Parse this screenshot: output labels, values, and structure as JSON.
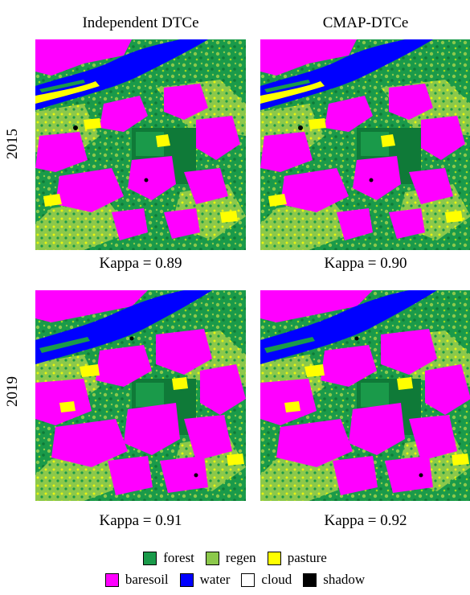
{
  "columns": [
    "Independent DTCe",
    "CMAP-DTCe"
  ],
  "rows": [
    "2015",
    "2019"
  ],
  "panels": [
    {
      "year": "2015",
      "method": "Independent DTCe",
      "kappa_label": "Kappa = 0.89",
      "kappa": 0.89
    },
    {
      "year": "2015",
      "method": "CMAP-DTCe",
      "kappa_label": "Kappa = 0.90",
      "kappa": 0.9
    },
    {
      "year": "2019",
      "method": "Independent DTCe",
      "kappa_label": "Kappa = 0.91",
      "kappa": 0.91
    },
    {
      "year": "2019",
      "method": "CMAP-DTCe",
      "kappa_label": "Kappa = 0.92",
      "kappa": 0.92
    }
  ],
  "legend": [
    {
      "label": "forest",
      "color": "#1a9a4a"
    },
    {
      "label": "regen",
      "color": "#8cc84b"
    },
    {
      "label": "pasture",
      "color": "#ffff00"
    },
    {
      "label": "baresoil",
      "color": "#ff00ff"
    },
    {
      "label": "water",
      "color": "#0000ff"
    },
    {
      "label": "cloud",
      "color": "#ffffff"
    },
    {
      "label": "shadow",
      "color": "#000000"
    }
  ]
}
